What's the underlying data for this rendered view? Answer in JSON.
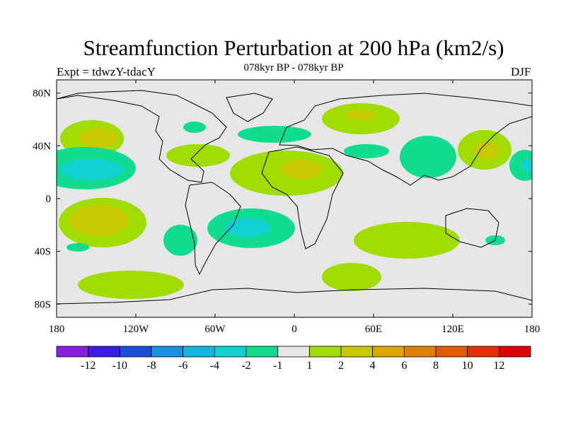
{
  "header": {
    "title": "Streamfunction Perturbation at 200 hPa (km2/s)",
    "left": "Expt = tdwzY-tdacY",
    "center": "078kyr BP - 078kyr BP",
    "right": "DJF"
  },
  "axes": {
    "y_ticks": [
      "80N",
      "40N",
      "0",
      "40S",
      "80S"
    ],
    "x_ticks": [
      "180",
      "120W",
      "60W",
      "0",
      "60E",
      "120E",
      "180"
    ]
  },
  "colorbar": {
    "labels": [
      "-12",
      "-10",
      "-8",
      "-6",
      "-4",
      "-2",
      "-1",
      "1",
      "2",
      "4",
      "6",
      "8",
      "10",
      "12"
    ],
    "colors": [
      "#8a1ee0",
      "#3a1ee0",
      "#1a50d8",
      "#1a90e0",
      "#14b4dc",
      "#10d0d0",
      "#10dc90",
      "#e6e6e6",
      "#a0dc00",
      "#c8c800",
      "#dca800",
      "#e08000",
      "#e05a00",
      "#e03000",
      "#e00000"
    ]
  },
  "fill_colors": {
    "neutral": "#e6e6e6",
    "pos_1_2": "#a0dc00",
    "pos_2_4": "#c8c800",
    "neg_1_2": "#10dc90",
    "neg_2_4": "#10d0d0"
  }
}
